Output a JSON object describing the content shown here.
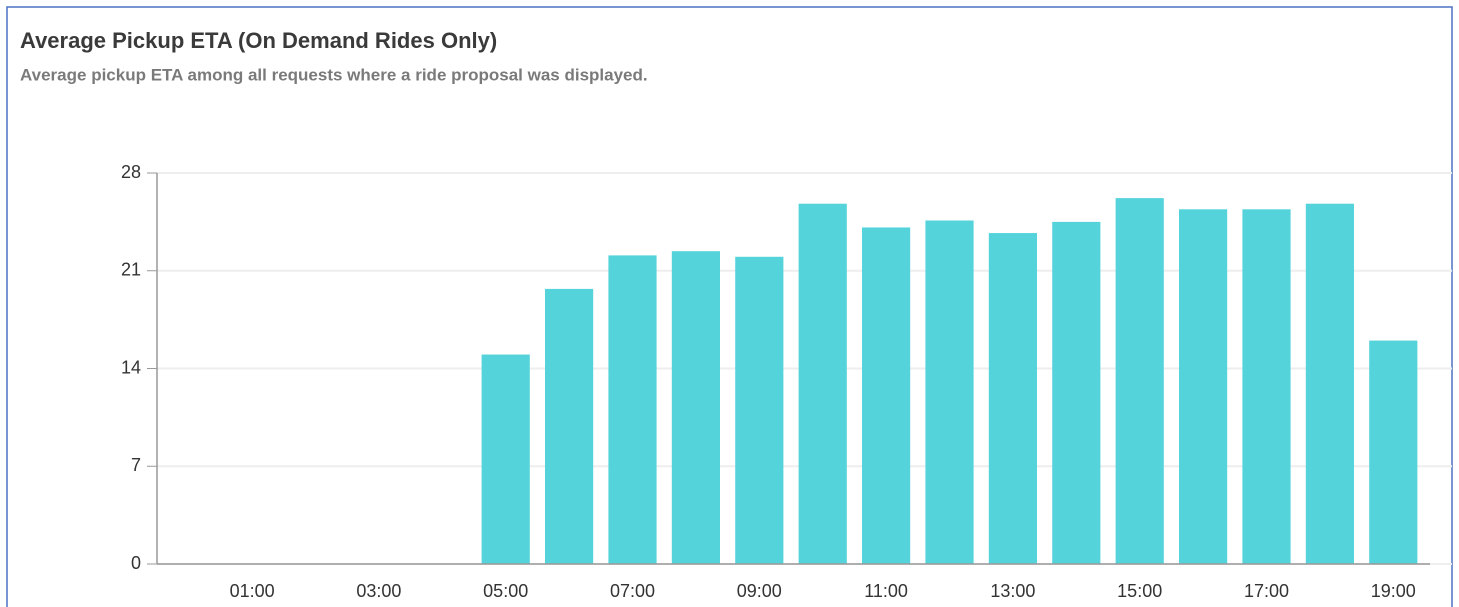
{
  "chart_data": {
    "type": "bar",
    "title": "Average Pickup ETA (On Demand Rides Only)",
    "subtitle": "Average pickup ETA among all requests where a ride proposal was displayed.",
    "categories": [
      null,
      "01:00",
      null,
      "03:00",
      null,
      "05:00",
      null,
      "07:00",
      null,
      "09:00",
      null,
      "11:00",
      null,
      "13:00",
      null,
      "15:00",
      null,
      "17:00",
      null,
      "19:00"
    ],
    "values": [
      null,
      null,
      null,
      null,
      null,
      15,
      19.7,
      22.1,
      22.4,
      22,
      25.8,
      24.1,
      24.6,
      23.7,
      24.5,
      26.2,
      25.4,
      25.4,
      25.8,
      16
    ],
    "color": "#54d3db",
    "ylim": [
      0,
      28
    ],
    "yticks": [
      0,
      7,
      14,
      21,
      28
    ],
    "grid": true
  }
}
